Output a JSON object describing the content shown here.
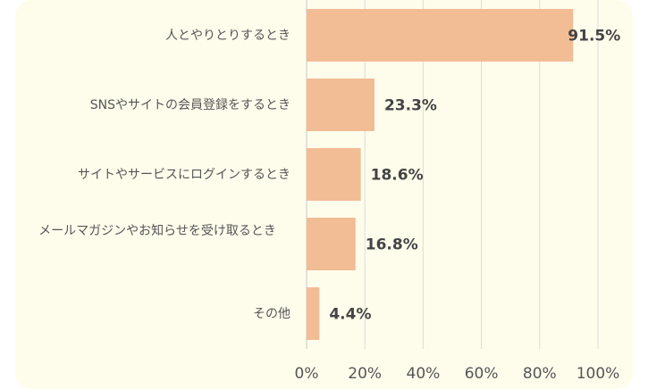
{
  "chart_data": {
    "type": "bar",
    "orientation": "horizontal",
    "categories": [
      "人とやりとりするとき",
      "SNSやサイトの会員登録をするとき",
      "サイトやサービスにログインするとき",
      "メールマガジンやお知らせを受け取るとき",
      "その他"
    ],
    "values": [
      91.5,
      23.3,
      18.6,
      16.8,
      4.4
    ],
    "value_labels": [
      "91.5%",
      "23.3%",
      "18.6%",
      "16.8%",
      "4.4%"
    ],
    "x_ticks": [
      "0%",
      "20%",
      "40%",
      "60%",
      "80%",
      "100%"
    ],
    "xlim": [
      0,
      100
    ],
    "grid": true,
    "colors": {
      "bar": "#f2bc94",
      "background": "#fefdec",
      "grid": "#dcdcd6",
      "value_text": "#444444",
      "label_text": "#555555"
    }
  }
}
